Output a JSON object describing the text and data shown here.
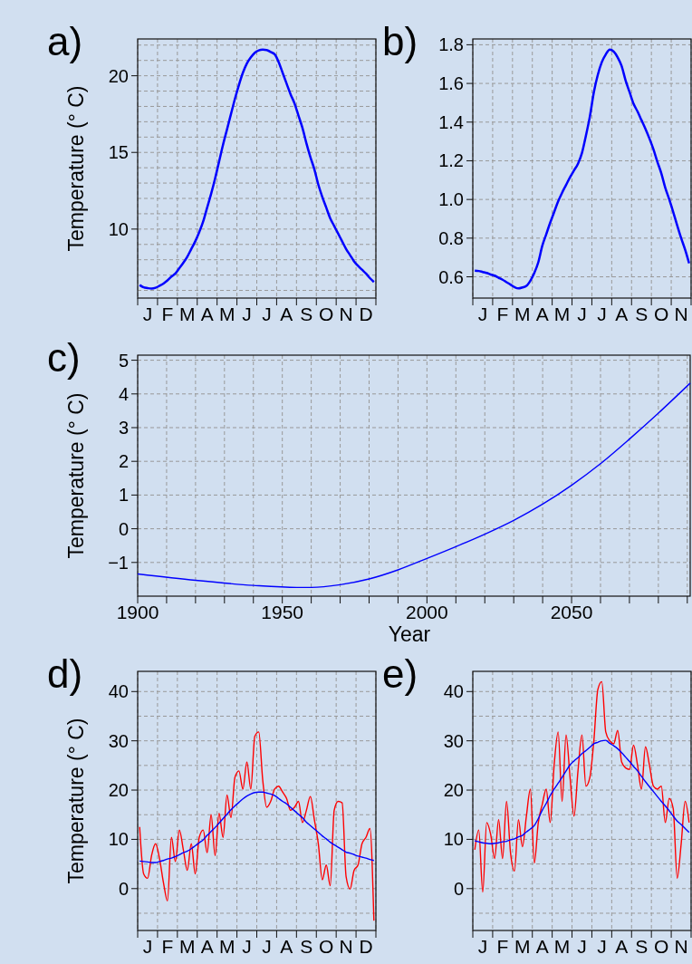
{
  "chart_data": [
    {
      "type": "line",
      "title": "a)",
      "ylabel": "Temperature (° C)",
      "ylim": [
        5.5,
        22.4
      ],
      "grid": true,
      "categories": [
        null,
        null,
        "J",
        null,
        null,
        null,
        null,
        "F",
        null,
        null,
        null,
        null,
        "M",
        null,
        null,
        null,
        null,
        "A",
        null,
        null,
        null,
        null,
        "M",
        null,
        null,
        null,
        null,
        "J",
        null,
        null,
        null,
        null,
        "J",
        null,
        null,
        null,
        null,
        "A",
        null,
        null,
        null,
        null,
        "S",
        null,
        null,
        null,
        null,
        "O",
        null,
        null,
        null,
        null,
        "N",
        null,
        null,
        null,
        null,
        "D",
        null,
        null
      ],
      "yticks": [
        {
          "value": 6,
          "label": null
        },
        {
          "value": 7,
          "label": null
        },
        {
          "value": 8,
          "label": null
        },
        {
          "value": 9,
          "label": null
        },
        10,
        {
          "value": 11,
          "label": null
        },
        {
          "value": 12,
          "label": null
        },
        {
          "value": 13,
          "label": null
        },
        {
          "value": 14,
          "label": null
        },
        15,
        {
          "value": 16,
          "label": null
        },
        {
          "value": 17,
          "label": null
        },
        {
          "value": 18,
          "label": null
        },
        {
          "value": 19,
          "label": null
        },
        20,
        {
          "value": 21,
          "label": null
        },
        {
          "value": 22,
          "label": null
        }
      ],
      "series": [
        {
          "color": "#0000ff",
          "values": [
            6.35,
            6.2,
            6.15,
            6.12,
            6.17,
            6.3,
            6.45,
            6.65,
            6.9,
            7.1,
            7.45,
            7.8,
            8.2,
            8.7,
            9.2,
            9.8,
            10.5,
            11.4,
            12.3,
            13.3,
            14.4,
            15.5,
            16.5,
            17.5,
            18.5,
            19.4,
            20.2,
            20.8,
            21.2,
            21.5,
            21.65,
            21.7,
            21.68,
            21.55,
            21.4,
            20.9,
            20.2,
            19.5,
            18.8,
            18.2,
            17.4,
            16.6,
            15.6,
            14.7,
            13.9,
            12.9,
            12.1,
            11.4,
            10.7,
            10.2,
            9.7,
            9.2,
            8.7,
            8.3,
            7.9,
            7.6,
            7.35,
            7.1,
            6.8,
            6.55
          ]
        }
      ]
    },
    {
      "type": "line",
      "title": "b)",
      "ylim": [
        0.49,
        1.83
      ],
      "grid": true,
      "categories": [
        null,
        null,
        "J",
        null,
        null,
        null,
        null,
        "F",
        null,
        null,
        null,
        null,
        "M",
        null,
        null,
        null,
        null,
        "A",
        null,
        null,
        null,
        null,
        "M",
        null,
        null,
        null,
        null,
        "J",
        null,
        null,
        null,
        null,
        "J",
        null,
        null,
        null,
        null,
        "A",
        null,
        null,
        null,
        null,
        "S",
        null,
        null,
        null,
        null,
        "O",
        null,
        null,
        null,
        null,
        "N",
        null,
        null
      ],
      "yticks": [
        0.6,
        0.8,
        {
          "value": 1,
          "label": "1.0"
        },
        1.2,
        1.4,
        1.6,
        1.8
      ],
      "series": [
        {
          "color": "#0000ff",
          "values": [
            0.632,
            0.63,
            0.625,
            0.62,
            0.612,
            0.606,
            0.595,
            0.585,
            0.572,
            0.56,
            0.547,
            0.54,
            0.545,
            0.553,
            0.58,
            0.62,
            0.675,
            0.76,
            0.82,
            0.88,
            0.935,
            0.99,
            1.035,
            1.075,
            1.115,
            1.15,
            1.185,
            1.24,
            1.33,
            1.43,
            1.555,
            1.645,
            1.71,
            1.75,
            1.775,
            1.765,
            1.735,
            1.69,
            1.615,
            1.555,
            1.495,
            1.455,
            1.41,
            1.365,
            1.315,
            1.26,
            1.195,
            1.135,
            1.06,
            1.0,
            0.935,
            0.865,
            0.8,
            0.74,
            0.67
          ]
        }
      ]
    },
    {
      "type": "line",
      "title": "c)",
      "ylabel": "Temperature (° C)",
      "xlabel": "Year",
      "xlim": [
        1900,
        2091
      ],
      "ylim": [
        -2,
        5.15
      ],
      "grid": true,
      "xticks": [
        1900,
        {
          "value": 1910,
          "label": null
        },
        {
          "value": 1920,
          "label": null
        },
        {
          "value": 1930,
          "label": null
        },
        {
          "value": 1940,
          "label": null
        },
        1950,
        {
          "value": 1960,
          "label": null
        },
        {
          "value": 1970,
          "label": null
        },
        {
          "value": 1980,
          "label": null
        },
        {
          "value": 1990,
          "label": null
        },
        2000,
        {
          "value": 2010,
          "label": null
        },
        {
          "value": 2020,
          "label": null
        },
        {
          "value": 2030,
          "label": null
        },
        {
          "value": 2040,
          "label": null
        },
        2050,
        {
          "value": 2060,
          "label": null
        },
        {
          "value": 2070,
          "label": null
        },
        {
          "value": 2080,
          "label": null
        },
        {
          "value": 2090,
          "label": null
        }
      ],
      "yticks": [
        {
          "value": -1,
          "label": "−1"
        },
        0,
        1,
        2,
        3,
        4,
        5
      ],
      "series": [
        {
          "color": "#0000ff",
          "x": [
            1900,
            1920,
            1940,
            1955,
            1960,
            1970,
            1980,
            1990,
            2000,
            2010,
            2020,
            2030,
            2040,
            2050,
            2060,
            2070,
            2080,
            2091
          ],
          "values": [
            -1.34,
            -1.53,
            -1.68,
            -1.74,
            -1.74,
            -1.66,
            -1.49,
            -1.22,
            -0.88,
            -0.53,
            -0.16,
            0.25,
            0.73,
            1.29,
            1.93,
            2.66,
            3.43,
            4.32
          ]
        }
      ]
    },
    {
      "type": "line",
      "title": "d)",
      "ylabel": "Temperature (° C)",
      "ylim": [
        -8.5,
        44.1
      ],
      "grid": true,
      "categories": [
        null,
        null,
        "J",
        null,
        null,
        null,
        null,
        "F",
        null,
        null,
        null,
        null,
        "M",
        null,
        null,
        null,
        null,
        "A",
        null,
        null,
        null,
        null,
        "M",
        null,
        null,
        null,
        null,
        "J",
        null,
        null,
        null,
        null,
        "J",
        null,
        null,
        null,
        null,
        "A",
        null,
        null,
        null,
        null,
        "S",
        null,
        null,
        null,
        null,
        "O",
        null,
        null,
        null,
        null,
        "N",
        null,
        null,
        null,
        null,
        "D",
        null,
        null
      ],
      "yticks": [
        {
          "value": -5,
          "label": null
        },
        0,
        {
          "value": 5,
          "label": null
        },
        10,
        {
          "value": 15,
          "label": null
        },
        20,
        {
          "value": 25,
          "label": null
        },
        30,
        {
          "value": 35,
          "label": null
        },
        40
      ],
      "series": [
        {
          "color": "#ff0000",
          "values": [
            12.5,
            3.0,
            2.1,
            6.7,
            9.1,
            6.1,
            1.2,
            -2.5,
            10.4,
            5.5,
            11.9,
            7.9,
            3.7,
            9.1,
            3.0,
            10.4,
            11.9,
            7.3,
            15.0,
            6.7,
            15.3,
            10.4,
            19.0,
            14.4,
            22.6,
            23.9,
            20.2,
            25.7,
            20.2,
            30.9,
            31.8,
            22.0,
            16.5,
            17.7,
            20.2,
            20.8,
            19.6,
            18.3,
            15.9,
            16.5,
            17.7,
            13.4,
            15.9,
            18.7,
            14.0,
            9.1,
            1.8,
            4.8,
            0.6,
            15.9,
            17.7,
            17.4,
            2.4,
            -0.1,
            3.7,
            4.8,
            9.1,
            10.4,
            12.2,
            -6.5
          ]
        },
        {
          "color": "#0000ff",
          "values": [
            5.6,
            5.5,
            5.4,
            5.3,
            5.3,
            5.5,
            5.7,
            6.0,
            6.2,
            6.5,
            6.9,
            7.3,
            7.6,
            8.1,
            8.7,
            9.3,
            9.9,
            10.8,
            11.6,
            12.4,
            13.3,
            14.2,
            15.1,
            16.0,
            16.8,
            17.5,
            18.2,
            18.8,
            19.2,
            19.5,
            19.6,
            19.6,
            19.4,
            19.2,
            18.9,
            18.3,
            17.7,
            17.2,
            16.5,
            15.8,
            15.1,
            14.4,
            13.5,
            12.8,
            12.1,
            11.4,
            10.7,
            10.1,
            9.4,
            8.9,
            8.4,
            7.9,
            7.4,
            7.2,
            6.9,
            6.6,
            6.4,
            6.2,
            5.9,
            5.7
          ]
        }
      ]
    },
    {
      "type": "line",
      "title": "e)",
      "ylim": [
        -8.5,
        44.1
      ],
      "grid": true,
      "categories": [
        null,
        null,
        "J",
        null,
        null,
        null,
        null,
        "F",
        null,
        null,
        null,
        null,
        "M",
        null,
        null,
        null,
        null,
        "A",
        null,
        null,
        null,
        null,
        "M",
        null,
        null,
        null,
        null,
        "J",
        null,
        null,
        null,
        null,
        "J",
        null,
        null,
        null,
        null,
        "A",
        null,
        null,
        null,
        null,
        "S",
        null,
        null,
        null,
        null,
        "O",
        null,
        null,
        null,
        null,
        "N",
        null,
        null
      ],
      "yticks": [
        {
          "value": -5,
          "label": null
        },
        0,
        {
          "value": 5,
          "label": null
        },
        10,
        {
          "value": 15,
          "label": null
        },
        20,
        {
          "value": 25,
          "label": null
        },
        30,
        {
          "value": 35,
          "label": null
        },
        40
      ],
      "series": [
        {
          "color": "#ff0000",
          "values": [
            7.9,
            11.9,
            -0.7,
            13.4,
            11.0,
            6.1,
            14.0,
            6.1,
            17.7,
            7.3,
            3.6,
            14.0,
            8.5,
            14.7,
            20.2,
            5.2,
            13.4,
            17.1,
            20.2,
            13.4,
            25.1,
            31.8,
            17.7,
            31.2,
            22.6,
            14.7,
            23.9,
            31.2,
            20.8,
            22.6,
            30.0,
            40.4,
            42.0,
            31.8,
            30.0,
            29.4,
            32.1,
            25.7,
            24.5,
            24.2,
            29.1,
            25.1,
            20.2,
            28.8,
            25.1,
            20.8,
            20.2,
            20.8,
            13.4,
            18.3,
            16.2,
            2.1,
            9.1,
            17.7,
            13.4
          ]
        },
        {
          "color": "#0000ff",
          "values": [
            9.7,
            9.5,
            9.3,
            9.2,
            9.1,
            9.2,
            9.3,
            9.5,
            9.6,
            9.9,
            10.1,
            10.5,
            10.8,
            11.5,
            12.1,
            12.8,
            14.2,
            15.9,
            17.3,
            18.9,
            20.2,
            21.4,
            22.6,
            23.9,
            25.1,
            25.9,
            26.6,
            27.4,
            28.0,
            28.7,
            29.4,
            29.7,
            30.0,
            30.1,
            29.5,
            29.0,
            28.4,
            27.6,
            26.7,
            25.8,
            24.8,
            23.9,
            22.8,
            21.7,
            20.7,
            19.7,
            18.7,
            17.7,
            16.8,
            15.8,
            14.7,
            13.7,
            13.0,
            12.2,
            11.4
          ]
        }
      ]
    }
  ]
}
